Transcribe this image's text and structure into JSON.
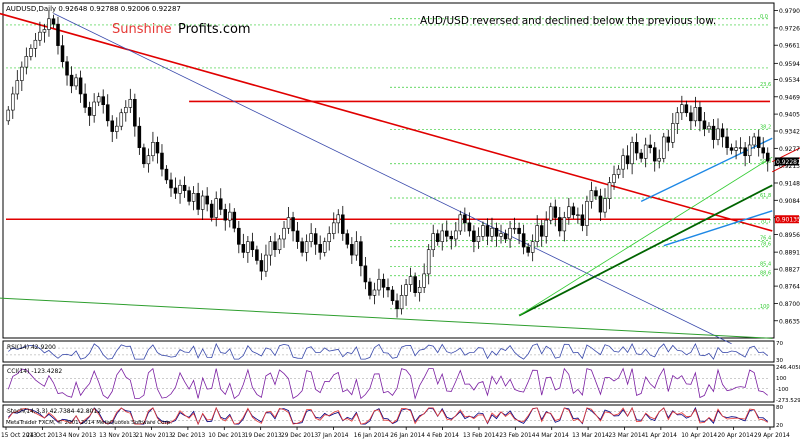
{
  "header": {
    "symbol_line": "AUDUSD,Daily  0.92648 0.92788 0.92006 0.92287",
    "watermark_red": "Sunshine",
    "watermark_black": "Profits.com",
    "annotation": "AUD/USD reversed and declined below the previous low."
  },
  "footer": {
    "copyright": "MetaTrader FXCM, © 2001-2014 MetaQuotes Software Corp."
  },
  "colors": {
    "up_candle": "#ffffff",
    "down_candle": "#000000",
    "resistance": "#e00000",
    "trend_blue": "#1e88e5",
    "trend_green": "#006400",
    "fib_green": "#33cc33",
    "channel_orange": "#ff9900",
    "price_label_bg": "#000000",
    "support_label_bg": "#e00000"
  },
  "chart_data": [
    {
      "type": "candlestick",
      "title": "AUDUSD,Daily",
      "ohlc_last": {
        "open": 0.92648,
        "high": 0.92788,
        "low": 0.92006,
        "close": 0.92287
      },
      "current_price_label": "0.92287",
      "support_label": "0.90135",
      "ylim": [
        0.8575,
        0.9815
      ],
      "y_ticks": [
        "0.97905",
        "0.97260",
        "0.96615",
        "0.95940",
        "0.95340",
        "0.94695",
        "0.94050",
        "0.93420",
        "0.92775",
        "0.92130",
        "0.91485",
        "0.90840",
        "0.90195",
        "0.89565",
        "0.88910",
        "0.88275",
        "0.87645",
        "0.87000",
        "0.86355"
      ],
      "x_ticks": [
        "15 Oct 2013",
        "24 Oct 2013",
        "4 Nov 2013",
        "13 Nov 2013",
        "21 Nov 2013",
        "2 Dec 2013",
        "10 Dec 2013",
        "19 Dec 2013",
        "29 Dec 2013",
        "7 Jan 2014",
        "16 Jan 2014",
        "26 Jan 2014",
        "4 Feb 2014",
        "13 Feb 2014",
        "23 Feb 2014",
        "4 Mar 2014",
        "13 Mar 2014",
        "23 Mar 2014",
        "1 Apr 2014",
        "10 Apr 2014",
        "20 Apr 2014",
        "29 Apr 2014"
      ],
      "closes": [
        0.942,
        0.948,
        0.953,
        0.958,
        0.962,
        0.965,
        0.968,
        0.971,
        0.972,
        0.976,
        0.974,
        0.966,
        0.96,
        0.955,
        0.951,
        0.954,
        0.948,
        0.943,
        0.94,
        0.945,
        0.947,
        0.944,
        0.938,
        0.934,
        0.936,
        0.941,
        0.943,
        0.946,
        0.936,
        0.928,
        0.922,
        0.925,
        0.93,
        0.926,
        0.92,
        0.916,
        0.913,
        0.911,
        0.914,
        0.912,
        0.908,
        0.911,
        0.905,
        0.91,
        0.907,
        0.902,
        0.909,
        0.905,
        0.901,
        0.904,
        0.898,
        0.892,
        0.889,
        0.893,
        0.89,
        0.886,
        0.882,
        0.888,
        0.893,
        0.89,
        0.894,
        0.898,
        0.902,
        0.897,
        0.893,
        0.889,
        0.893,
        0.896,
        0.892,
        0.889,
        0.893,
        0.896,
        0.9,
        0.903,
        0.896,
        0.892,
        0.888,
        0.893,
        0.884,
        0.878,
        0.873,
        0.875,
        0.879,
        0.876,
        0.875,
        0.871,
        0.868,
        0.873,
        0.877,
        0.88,
        0.874,
        0.876,
        0.881,
        0.89,
        0.896,
        0.893,
        0.897,
        0.895,
        0.894,
        0.897,
        0.903,
        0.9,
        0.897,
        0.893,
        0.895,
        0.899,
        0.895,
        0.898,
        0.895,
        0.896,
        0.894,
        0.898,
        0.898,
        0.896,
        0.891,
        0.889,
        0.893,
        0.899,
        0.895,
        0.901,
        0.906,
        0.902,
        0.897,
        0.902,
        0.906,
        0.903,
        0.903,
        0.899,
        0.908,
        0.912,
        0.91,
        0.904,
        0.909,
        0.915,
        0.918,
        0.92,
        0.925,
        0.922,
        0.93,
        0.926,
        0.924,
        0.929,
        0.928,
        0.923,
        0.924,
        0.932,
        0.93,
        0.937,
        0.941,
        0.944,
        0.941,
        0.938,
        0.943,
        0.938,
        0.935,
        0.936,
        0.931,
        0.935,
        0.932,
        0.928,
        0.927,
        0.928,
        0.928,
        0.925,
        0.929,
        0.932,
        0.928,
        0.926,
        0.923
      ],
      "horizontal_levels": [
        {
          "label": "resistance",
          "price": 0.9452,
          "color": "resistance"
        },
        {
          "label": "support",
          "price": 0.90135,
          "color": "resistance"
        }
      ],
      "fib_labels": [
        "0.0",
        "23.6",
        "38.2",
        "50.0",
        "61.8",
        "70.7",
        "76.4",
        "78.6",
        "85.4",
        "88.6",
        "100"
      ]
    },
    {
      "type": "line",
      "title": "RSI(14) 42.9200",
      "levels": [
        30,
        70
      ],
      "y_ticks": [
        "70",
        "30"
      ]
    },
    {
      "type": "line",
      "title": "CCI(14) -123.4282",
      "y_ticks": [
        "246.4058",
        "100",
        "-100",
        "-273.5294"
      ]
    },
    {
      "type": "line",
      "title": "Stoch(14,3,3) 42.7384 42.8012",
      "y_ticks": [
        "80",
        "20"
      ]
    }
  ]
}
